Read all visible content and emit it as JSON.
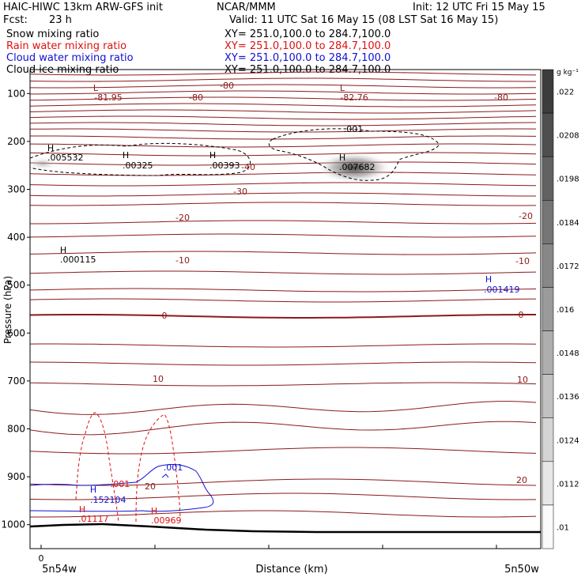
{
  "header": {
    "title": "HAIC-HIWC 13km ARW-GFS init",
    "org": "NCAR/MMM",
    "init": "Init: 12 UTC Fri 15 May 15",
    "fcst_label": "Fcst:",
    "fcst_value": "23 h",
    "valid": "Valid: 11 UTC Sat 16 May 15 (08 LST Sat 16 May 15)"
  },
  "fields": [
    {
      "name": "Snow mixing ratio",
      "xy": "XY= 251.0,100.0 to 284.7,100.0",
      "color": "#000000"
    },
    {
      "name": "Rain water mixing ratio",
      "xy": "XY= 251.0,100.0 to 284.7,100.0",
      "color": "#e01010"
    },
    {
      "name": "Cloud water mixing ratio",
      "xy": "XY= 251.0,100.0 to 284.7,100.0",
      "color": "#1010d0"
    },
    {
      "name": "Cloud ice mixing ratio",
      "xy": "XY= 251.0,100.0 to 284.7,100.0",
      "color": "#000000"
    }
  ],
  "colors": {
    "temperature": "#8b1a1a",
    "rain": "#e01010",
    "cloud_water": "#1010d0",
    "snow": "#000000",
    "terrain": "#000000"
  },
  "chart_data": {
    "type": "heatmap",
    "xlabel": "Distance (km)",
    "ylabel": "Pressure (hPa)",
    "x_tick_labels": [
      "0"
    ],
    "x_endpoints": [
      "5n54w",
      "5n50w"
    ],
    "y_ticks": [
      100,
      200,
      300,
      400,
      500,
      600,
      700,
      800,
      900,
      1000
    ],
    "ylim": [
      1050,
      50
    ],
    "colorbar": {
      "unit": "g kg⁻¹",
      "ticks": [
        ".022",
        ".0208",
        ".0198",
        ".0184",
        ".0172",
        ".016",
        ".0148",
        ".0136",
        ".0124",
        ".0112",
        ".01"
      ]
    },
    "contour_labels": [
      {
        "text": "-81.95",
        "color": "temperature"
      },
      {
        "text": "-80",
        "color": "temperature"
      },
      {
        "text": "-80",
        "color": "temperature"
      },
      {
        "text": "-82.76",
        "color": "temperature"
      },
      {
        "text": "-80",
        "color": "temperature"
      },
      {
        "text": "-40",
        "color": "temperature"
      },
      {
        "text": "-30",
        "color": "temperature"
      },
      {
        "text": "-20",
        "color": "temperature"
      },
      {
        "text": "-20",
        "color": "temperature"
      },
      {
        "text": "-10",
        "color": "temperature"
      },
      {
        "text": "-10",
        "color": "temperature"
      },
      {
        "text": "0",
        "color": "temperature"
      },
      {
        "text": "0",
        "color": "temperature"
      },
      {
        "text": "10",
        "color": "temperature"
      },
      {
        "text": "10",
        "color": "temperature"
      },
      {
        "text": "20",
        "color": "temperature"
      },
      {
        "text": "20",
        "color": "temperature"
      },
      {
        "text": ".001",
        "color": "snow"
      },
      {
        "text": ".001",
        "color": "rain"
      },
      {
        "text": ".001",
        "color": "cloud_water"
      }
    ],
    "extrema": [
      {
        "mark": "L",
        "value": "",
        "color": "temperature"
      },
      {
        "mark": "L",
        "value": "",
        "color": "temperature"
      },
      {
        "mark": "H",
        "value": ".005532",
        "color": "snow"
      },
      {
        "mark": "H",
        "value": ".00325",
        "color": "snow"
      },
      {
        "mark": "H",
        "value": ".00393",
        "color": "snow"
      },
      {
        "mark": "H",
        "value": ".007682",
        "color": "snow"
      },
      {
        "mark": "H",
        "value": ".000115",
        "color": "snow"
      },
      {
        "mark": "H",
        "value": ".001419",
        "color": "cloud_water"
      },
      {
        "mark": "H",
        "value": ".152104",
        "color": "cloud_water"
      },
      {
        "mark": "H",
        "value": ".01117",
        "color": "rain"
      },
      {
        "mark": "H",
        "value": ".00969",
        "color": "rain"
      }
    ]
  }
}
